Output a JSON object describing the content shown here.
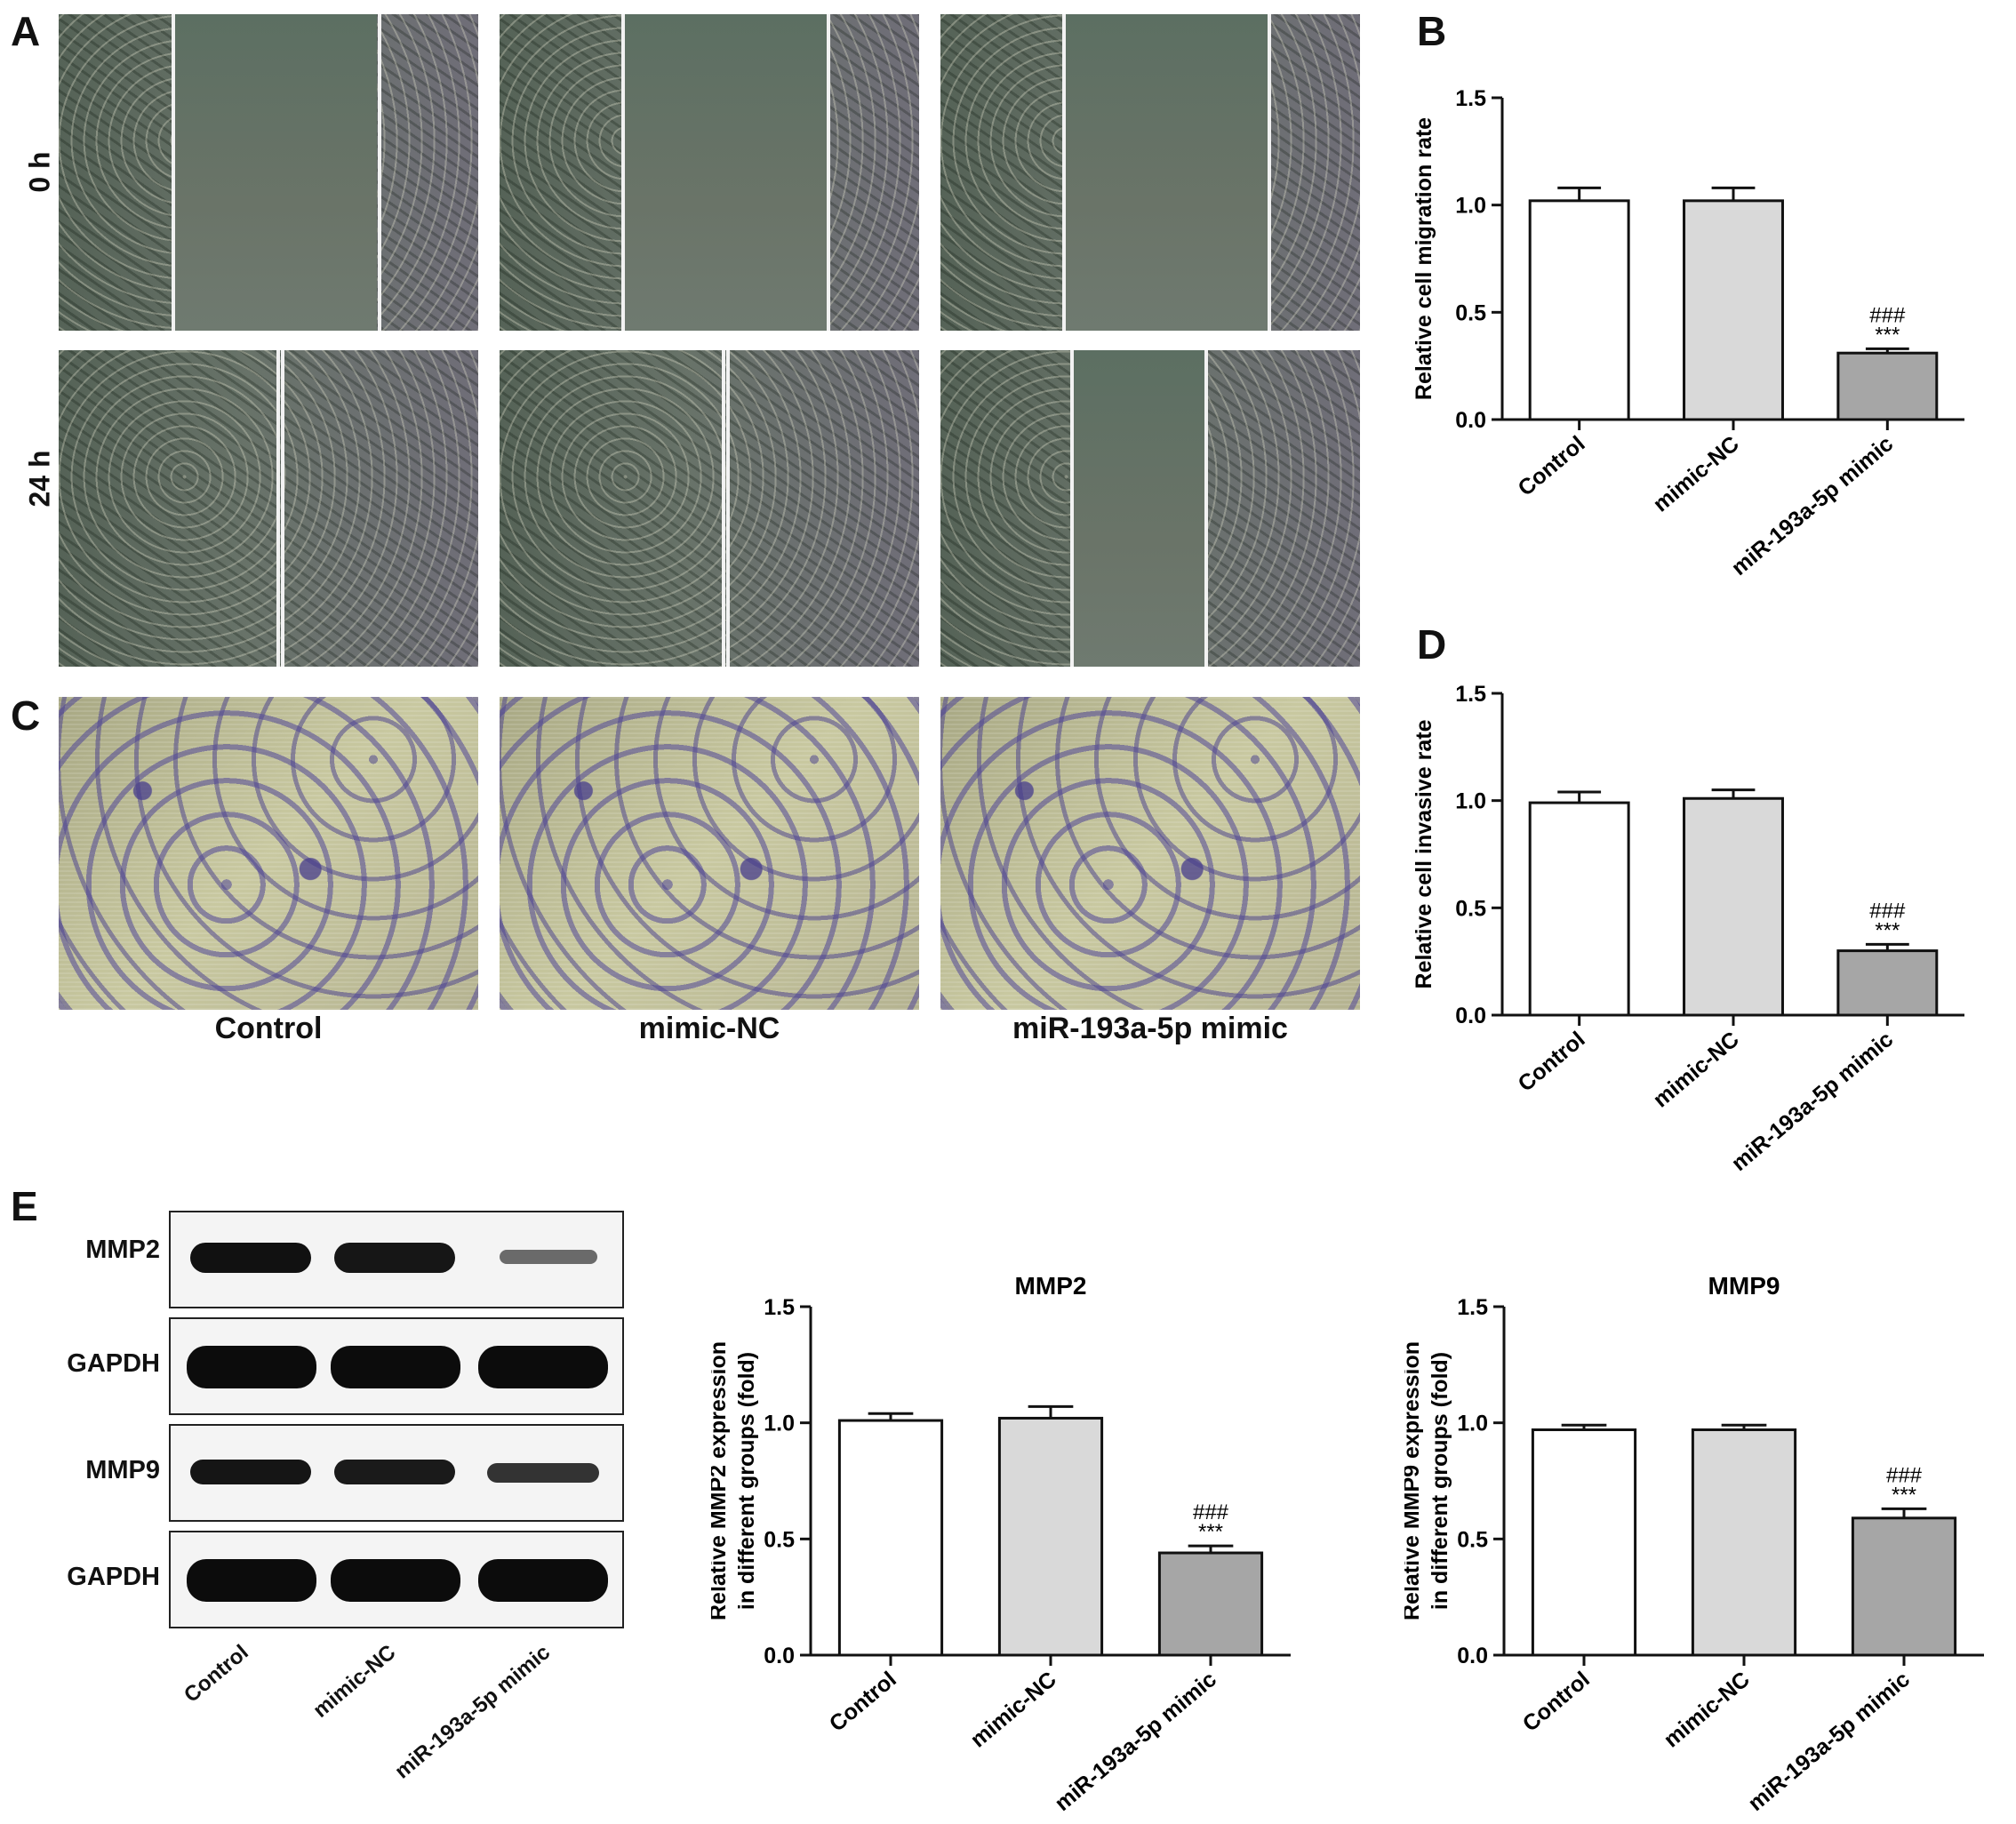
{
  "panels": {
    "A": "A",
    "B": "B",
    "C": "C",
    "D": "D",
    "E": "E"
  },
  "scratch": {
    "row_labels": [
      "0 h",
      "24 h"
    ]
  },
  "invasion": {
    "captions": [
      "Control",
      "mimic-NC",
      "miR-193a-5p mimic"
    ]
  },
  "blot": {
    "labels": [
      "MMP2",
      "GAPDH",
      "MMP9",
      "GAPDH"
    ],
    "lanes": [
      "Control",
      "mimic-NC",
      "miR-193a-5p mimic"
    ]
  },
  "chart_data": [
    {
      "id": "B",
      "type": "bar",
      "title": "",
      "categories": [
        "Control",
        "mimic-NC",
        "miR-193a-5p mimic"
      ],
      "values": [
        1.02,
        1.02,
        0.31
      ],
      "errors": [
        0.06,
        0.06,
        0.02
      ],
      "ylabel": "Relative cell migration rate",
      "ylabel_lines": [
        "Relative cell migration rate"
      ],
      "xlabel": "",
      "ylim": [
        0,
        1.5
      ],
      "yticks": [
        "0.0",
        "0.5",
        "1.0",
        "1.5"
      ],
      "annotations": [
        "",
        "",
        "###\n***"
      ],
      "colors": [
        "#ffffff",
        "#d9d9d9",
        "#a6a6a6"
      ]
    },
    {
      "id": "D",
      "type": "bar",
      "title": "",
      "categories": [
        "Control",
        "mimic-NC",
        "miR-193a-5p mimic"
      ],
      "values": [
        0.99,
        1.01,
        0.3
      ],
      "errors": [
        0.05,
        0.04,
        0.03
      ],
      "ylabel": "Relative cell invasive rate",
      "ylabel_lines": [
        "Relative cell invasive rate"
      ],
      "xlabel": "",
      "ylim": [
        0,
        1.5
      ],
      "yticks": [
        "0.0",
        "0.5",
        "1.0",
        "1.5"
      ],
      "annotations": [
        "",
        "",
        "###\n***"
      ],
      "colors": [
        "#ffffff",
        "#d9d9d9",
        "#a6a6a6"
      ]
    },
    {
      "id": "E1",
      "type": "bar",
      "title": "MMP2",
      "categories": [
        "Control",
        "mimic-NC",
        "miR-193a-5p mimic"
      ],
      "values": [
        1.01,
        1.02,
        0.44
      ],
      "errors": [
        0.03,
        0.05,
        0.03
      ],
      "ylabel": "Relative MMP2 expression in different groups (fold)",
      "ylabel_lines": [
        "Relative MMP2 expression",
        "in different groups (fold)"
      ],
      "xlabel": "",
      "ylim": [
        0,
        1.5
      ],
      "yticks": [
        "0.0",
        "0.5",
        "1.0",
        "1.5"
      ],
      "annotations": [
        "",
        "",
        "###\n***"
      ],
      "colors": [
        "#ffffff",
        "#d9d9d9",
        "#a6a6a6"
      ]
    },
    {
      "id": "E2",
      "type": "bar",
      "title": "MMP9",
      "categories": [
        "Control",
        "mimic-NC",
        "miR-193a-5p mimic"
      ],
      "values": [
        0.97,
        0.97,
        0.59
      ],
      "errors": [
        0.02,
        0.02,
        0.04
      ],
      "ylabel": "Relative MMP9 expression in different groups (fold)",
      "ylabel_lines": [
        "Relative MMP9 expression",
        "in different groups (fold)"
      ],
      "xlabel": "",
      "ylim": [
        0,
        1.5
      ],
      "yticks": [
        "0.0",
        "0.5",
        "1.0",
        "1.5"
      ],
      "annotations": [
        "",
        "",
        "###\n***"
      ],
      "colors": [
        "#ffffff",
        "#d9d9d9",
        "#a6a6a6"
      ]
    }
  ]
}
